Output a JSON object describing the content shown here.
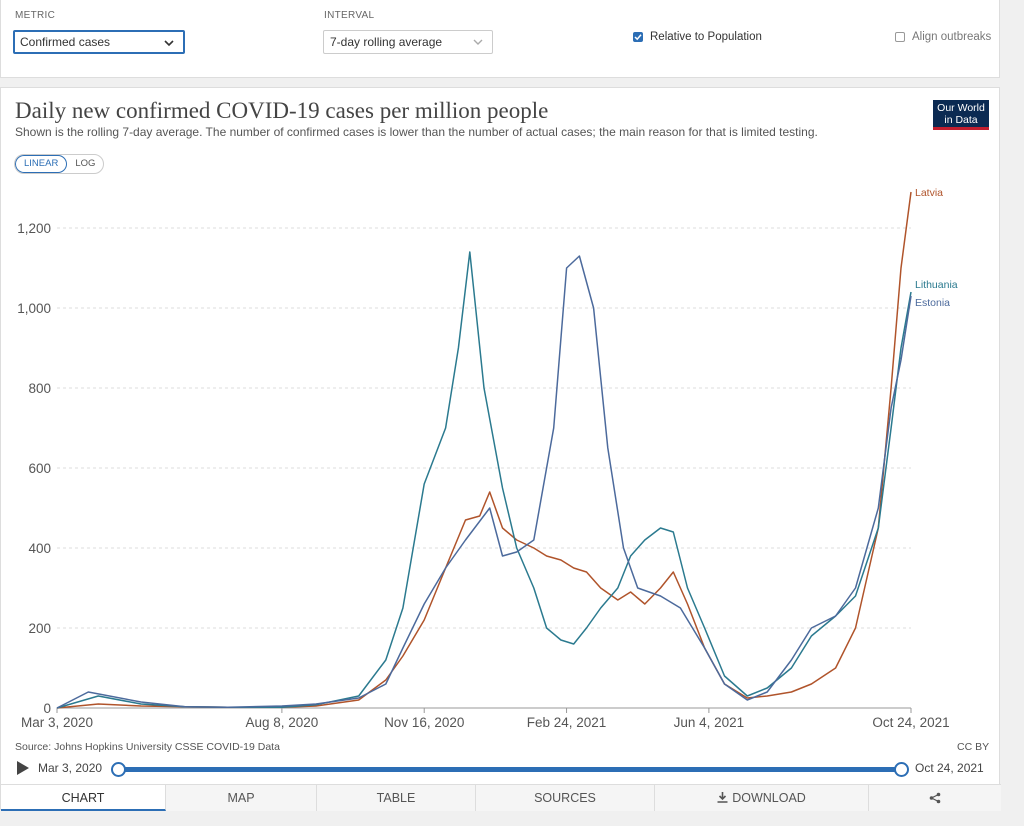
{
  "controls": {
    "metric_label": "METRIC",
    "metric_value": "Confirmed cases",
    "interval_label": "INTERVAL",
    "interval_value": "7-day rolling average",
    "relative_label": "Relative to Population",
    "relative_checked": true,
    "align_label": "Align outbreaks",
    "align_checked": false
  },
  "header": {
    "title": "Daily new confirmed COVID-19 cases per million people",
    "subtitle": "Shown is the rolling 7-day average. The number of confirmed cases is lower than the number of actual cases; the main reason for that is limited testing.",
    "logo_line1": "Our World",
    "logo_line2": "in Data"
  },
  "scale_toggle": {
    "linear": "LINEAR",
    "log": "LOG",
    "active": "linear"
  },
  "footer": {
    "source": "Source: Johns Hopkins University CSSE COVID-19 Data",
    "license": "CC BY"
  },
  "timeline": {
    "start": "Mar 3, 2020",
    "end": "Oct 24, 2021"
  },
  "tabs": [
    {
      "label": "CHART",
      "active": true
    },
    {
      "label": "MAP"
    },
    {
      "label": "TABLE"
    },
    {
      "label": "SOURCES"
    },
    {
      "label": "DOWNLOAD",
      "icon": "download-icon"
    },
    {
      "label": "",
      "icon": "share-icon"
    }
  ],
  "colors": {
    "Latvia": "#b0542b",
    "Lithuania": "#2b7a8f",
    "Estonia": "#4c6a9c",
    "accent": "#2c6eb5"
  },
  "chart_data": {
    "type": "line",
    "title": "Daily new confirmed COVID-19 cases per million people",
    "ylim": [
      0,
      1300
    ],
    "y_ticks": [
      0,
      200,
      400,
      600,
      800,
      1000,
      1200
    ],
    "y_tick_labels": [
      "0",
      "200",
      "400",
      "600",
      "800",
      "1,000",
      "1,200"
    ],
    "x_ticks": [
      "2020-03-03",
      "2020-08-08",
      "2020-11-16",
      "2021-02-24",
      "2021-06-04",
      "2021-10-24"
    ],
    "x_tick_labels": [
      "Mar 3, 2020",
      "Aug 8, 2020",
      "Nov 16, 2020",
      "Feb 24, 2021",
      "Jun 4, 2021",
      "Oct 24, 2021"
    ],
    "xlim": [
      "2020-03-03",
      "2021-10-24"
    ],
    "grid": "horizontal",
    "legend": "end-labels",
    "series": [
      {
        "name": "Latvia",
        "x": [
          "2020-03-03",
          "2020-04-01",
          "2020-05-01",
          "2020-06-01",
          "2020-07-01",
          "2020-08-08",
          "2020-09-01",
          "2020-10-01",
          "2020-10-20",
          "2020-11-01",
          "2020-11-16",
          "2020-12-01",
          "2020-12-15",
          "2020-12-25",
          "2021-01-01",
          "2021-01-10",
          "2021-01-20",
          "2021-02-01",
          "2021-02-10",
          "2021-02-20",
          "2021-03-01",
          "2021-03-10",
          "2021-03-20",
          "2021-04-01",
          "2021-04-10",
          "2021-04-20",
          "2021-05-01",
          "2021-05-10",
          "2021-05-20",
          "2021-06-01",
          "2021-06-15",
          "2021-07-01",
          "2021-07-15",
          "2021-08-01",
          "2021-08-15",
          "2021-09-01",
          "2021-09-15",
          "2021-10-01",
          "2021-10-10",
          "2021-10-17",
          "2021-10-24"
        ],
        "values": [
          0,
          10,
          5,
          3,
          2,
          2,
          5,
          20,
          70,
          130,
          220,
          350,
          470,
          480,
          540,
          450,
          420,
          400,
          380,
          370,
          350,
          340,
          300,
          270,
          290,
          260,
          300,
          340,
          260,
          150,
          60,
          25,
          30,
          40,
          60,
          100,
          200,
          450,
          800,
          1100,
          1290
        ]
      },
      {
        "name": "Lithuania",
        "x": [
          "2020-03-03",
          "2020-04-01",
          "2020-05-01",
          "2020-06-01",
          "2020-07-01",
          "2020-08-08",
          "2020-09-01",
          "2020-10-01",
          "2020-10-20",
          "2020-11-01",
          "2020-11-16",
          "2020-12-01",
          "2020-12-10",
          "2020-12-18",
          "2020-12-28",
          "2021-01-10",
          "2021-01-20",
          "2021-02-01",
          "2021-02-10",
          "2021-02-20",
          "2021-03-01",
          "2021-03-10",
          "2021-03-20",
          "2021-04-01",
          "2021-04-10",
          "2021-04-20",
          "2021-05-01",
          "2021-05-10",
          "2021-05-20",
          "2021-06-01",
          "2021-06-15",
          "2021-07-01",
          "2021-07-15",
          "2021-08-01",
          "2021-08-15",
          "2021-09-01",
          "2021-09-15",
          "2021-10-01",
          "2021-10-10",
          "2021-10-17",
          "2021-10-24"
        ],
        "values": [
          0,
          30,
          10,
          3,
          2,
          2,
          8,
          30,
          120,
          250,
          560,
          700,
          900,
          1140,
          800,
          550,
          400,
          300,
          200,
          170,
          160,
          200,
          250,
          300,
          380,
          420,
          450,
          440,
          300,
          200,
          80,
          30,
          50,
          100,
          180,
          230,
          280,
          450,
          700,
          900,
          1040
        ]
      },
      {
        "name": "Estonia",
        "x": [
          "2020-03-03",
          "2020-03-25",
          "2020-05-01",
          "2020-06-01",
          "2020-07-01",
          "2020-08-08",
          "2020-09-01",
          "2020-10-01",
          "2020-10-20",
          "2020-11-01",
          "2020-11-16",
          "2020-12-01",
          "2020-12-15",
          "2021-01-01",
          "2021-01-10",
          "2021-01-20",
          "2021-02-01",
          "2021-02-15",
          "2021-02-24",
          "2021-03-05",
          "2021-03-15",
          "2021-03-25",
          "2021-04-05",
          "2021-04-15",
          "2021-05-01",
          "2021-05-15",
          "2021-06-01",
          "2021-06-15",
          "2021-07-01",
          "2021-07-15",
          "2021-08-01",
          "2021-08-15",
          "2021-09-01",
          "2021-09-15",
          "2021-10-01",
          "2021-10-10",
          "2021-10-17",
          "2021-10-24"
        ],
        "values": [
          0,
          40,
          15,
          3,
          2,
          5,
          10,
          25,
          60,
          150,
          260,
          350,
          420,
          500,
          380,
          390,
          420,
          700,
          1100,
          1130,
          1000,
          650,
          400,
          300,
          280,
          250,
          150,
          60,
          20,
          40,
          120,
          200,
          230,
          300,
          500,
          750,
          870,
          1030
        ]
      }
    ]
  }
}
